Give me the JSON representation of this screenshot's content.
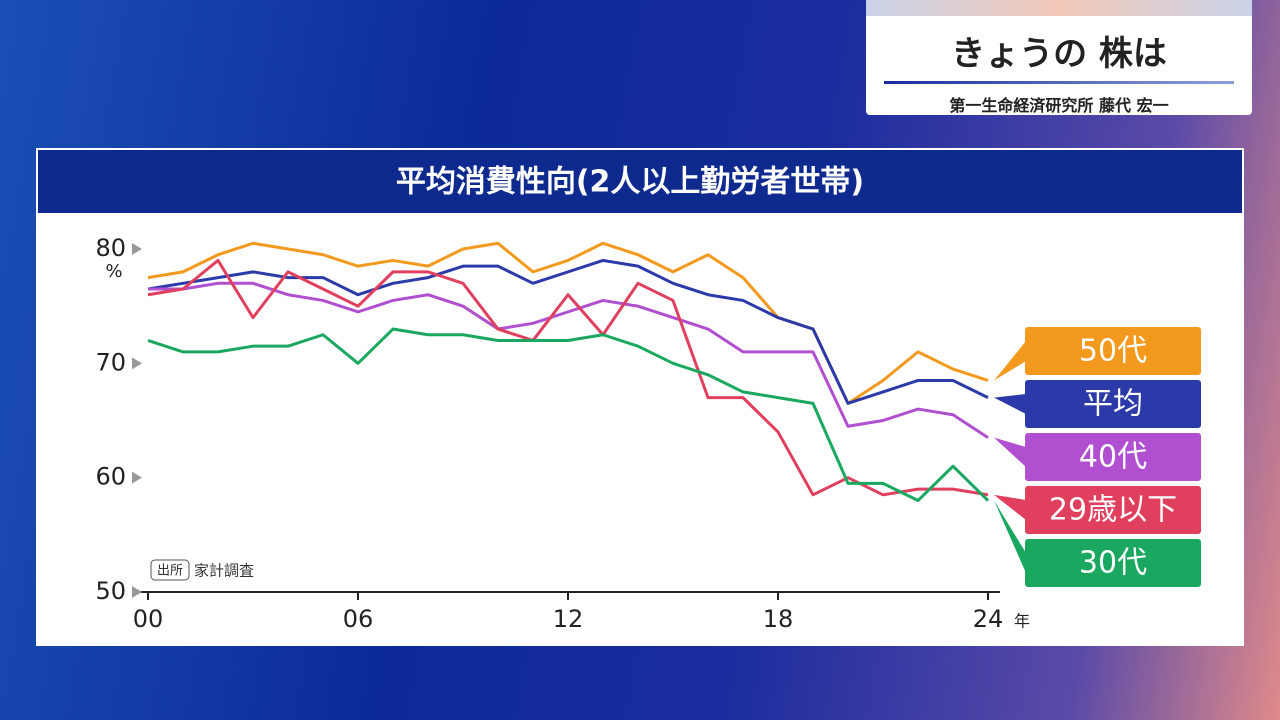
{
  "header": {
    "program": "きょうの 株は",
    "speaker": "第一生命経済研究所 藤代 宏一"
  },
  "chart_data": {
    "type": "line",
    "title": "平均消費性向(2人以上勤労者世帯)",
    "y_unit": "%",
    "x_unit": "年",
    "source_tag": "出所",
    "source": "家計調査",
    "x": [
      0,
      1,
      2,
      3,
      4,
      5,
      6,
      7,
      8,
      9,
      10,
      11,
      12,
      13,
      14,
      15,
      16,
      17,
      18,
      19,
      20,
      21,
      22,
      23,
      24
    ],
    "xlim": [
      0,
      24
    ],
    "xticks": [
      {
        "value": 0,
        "label": "00"
      },
      {
        "value": 6,
        "label": "06"
      },
      12,
      18,
      24
    ],
    "ylim": [
      50,
      80
    ],
    "yticks": [
      50,
      60,
      70,
      80
    ],
    "series": [
      {
        "name": "50代",
        "color": "#f39a1e",
        "values": [
          77.5,
          78,
          79.5,
          80.5,
          80,
          79.5,
          78.5,
          79,
          78.5,
          80,
          80.5,
          78,
          79,
          80.5,
          79.5,
          78,
          79.5,
          77.5,
          74,
          73,
          66.5,
          68.5,
          71,
          69.5,
          68.5
        ]
      },
      {
        "name": "平均",
        "color": "#2b3aa8",
        "values": [
          76.5,
          77,
          77.5,
          78,
          77.5,
          77.5,
          76,
          77,
          77.5,
          78.5,
          78.5,
          77,
          78,
          79,
          78.5,
          77,
          76,
          75.5,
          74,
          73,
          66.5,
          67.5,
          68.5,
          68.5,
          67
        ]
      },
      {
        "name": "40代",
        "color": "#b04fd0",
        "values": [
          76.5,
          76.5,
          77,
          77,
          76,
          75.5,
          74.5,
          75.5,
          76,
          75,
          73,
          73.5,
          74.5,
          75.5,
          75,
          74,
          73,
          71,
          71,
          71,
          64.5,
          65,
          66,
          65.5,
          63.5
        ]
      },
      {
        "name": "29歳以下",
        "color": "#e0405e",
        "values": [
          76,
          76.5,
          79,
          74,
          78,
          76.5,
          75,
          78,
          78,
          77,
          73,
          72,
          76,
          72.5,
          77,
          75.5,
          67,
          67,
          64,
          58.5,
          60,
          58.5,
          59,
          59,
          58.5
        ]
      },
      {
        "name": "30代",
        "color": "#1aa860",
        "values": [
          72,
          71,
          71,
          71.5,
          71.5,
          72.5,
          70,
          73,
          72.5,
          72.5,
          72,
          72,
          72,
          72.5,
          71.5,
          70,
          69,
          67.5,
          67,
          66.5,
          59.5,
          59.5,
          58,
          61,
          58
        ]
      }
    ]
  }
}
